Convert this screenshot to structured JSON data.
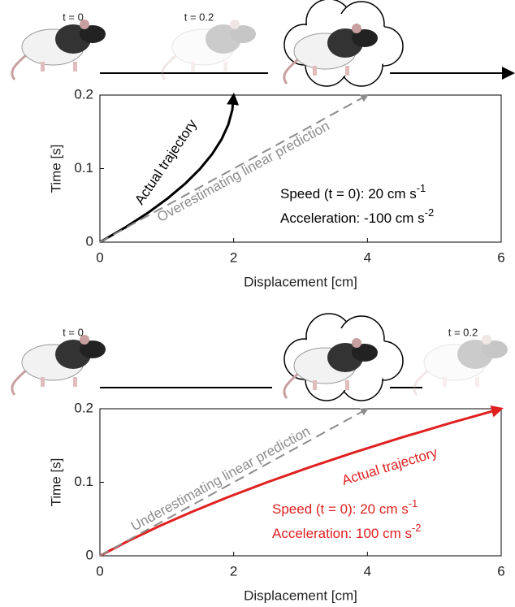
{
  "chart_data": [
    {
      "type": "line",
      "top_labels": [
        "t = 0",
        "t = 0.2"
      ],
      "xlabel": "Displacement [cm]",
      "ylabel": "Time [s]",
      "xlim": [
        0,
        6
      ],
      "ylim": [
        0,
        0.2
      ],
      "xticks": [
        0,
        2,
        4,
        6
      ],
      "yticks": [
        0,
        0.1,
        0.2
      ],
      "series": [
        {
          "name": "Actual trajectory",
          "color": "#000000",
          "dashed": false,
          "x": [
            0,
            0.38,
            0.72,
            1.02,
            1.28,
            1.5,
            1.68,
            1.82,
            1.92,
            1.98,
            2
          ],
          "values": [
            0,
            0.02,
            0.04,
            0.06,
            0.08,
            0.1,
            0.12,
            0.14,
            0.16,
            0.18,
            0.2
          ]
        },
        {
          "name": "Overestimating linear prediction",
          "color": "#8c8c8c",
          "dashed": true,
          "x": [
            0,
            4
          ],
          "values": [
            0,
            0.2
          ]
        }
      ],
      "annotations": [
        {
          "text": "Speed (t = 0): 20 cm s",
          "sup": "-1"
        },
        {
          "text": "Acceleration: -100 cm s",
          "sup": "-2"
        }
      ]
    },
    {
      "type": "line",
      "top_labels": [
        "t = 0",
        "t = 0.2"
      ],
      "xlabel": "Displacement [cm]",
      "ylabel": "Time [s]",
      "xlim": [
        0,
        6
      ],
      "ylim": [
        0,
        0.2
      ],
      "xticks": [
        0,
        2,
        4,
        6
      ],
      "yticks": [
        0,
        0.1,
        0.2
      ],
      "series": [
        {
          "name": "Actual  trajectory",
          "color": "#e02020",
          "dashed": false,
          "x": [
            0,
            0.42,
            0.88,
            1.38,
            1.92,
            2.5,
            3.12,
            3.78,
            4.48,
            5.22,
            6
          ],
          "values": [
            0,
            0.02,
            0.04,
            0.06,
            0.08,
            0.1,
            0.12,
            0.14,
            0.16,
            0.18,
            0.2
          ]
        },
        {
          "name": "Underestimating linear prediction",
          "color": "#8c8c8c",
          "dashed": true,
          "x": [
            0,
            4
          ],
          "values": [
            0,
            0.2
          ]
        }
      ],
      "annotations": [
        {
          "text": "Speed (t = 0): 20 cm s",
          "sup": "-1"
        },
        {
          "text": "Acceleration: 100 cm s",
          "sup": "-2"
        }
      ]
    }
  ]
}
